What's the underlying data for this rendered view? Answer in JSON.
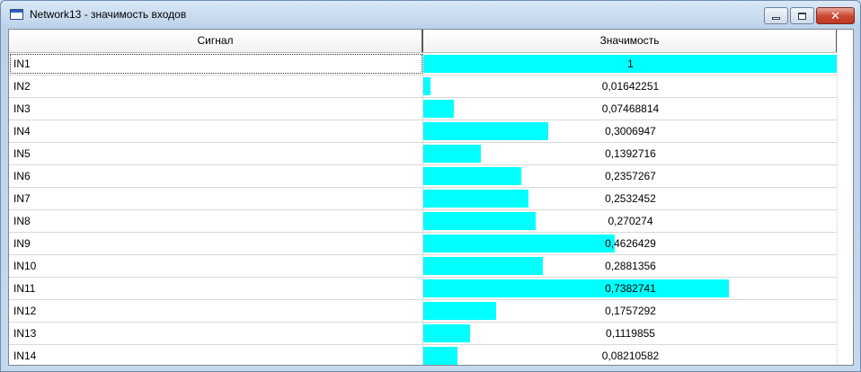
{
  "window": {
    "title": "Network13 - значимость входов"
  },
  "controls": {
    "close_glyph": "✕"
  },
  "table": {
    "columns": [
      "Сигнал",
      "Значимость"
    ],
    "rows": [
      {
        "name": "IN1",
        "value": "1",
        "importance": 1
      },
      {
        "name": "IN2",
        "value": "0,01642251",
        "importance": 0.01642251
      },
      {
        "name": "IN3",
        "value": "0,07468814",
        "importance": 0.07468814
      },
      {
        "name": "IN4",
        "value": "0,3006947",
        "importance": 0.3006947
      },
      {
        "name": "IN5",
        "value": "0,1392716",
        "importance": 0.1392716
      },
      {
        "name": "IN6",
        "value": "0,2357267",
        "importance": 0.2357267
      },
      {
        "name": "IN7",
        "value": "0,2532452",
        "importance": 0.2532452
      },
      {
        "name": "IN8",
        "value": "0,270274",
        "importance": 0.270274
      },
      {
        "name": "IN9",
        "value": "0,4626429",
        "importance": 0.4626429
      },
      {
        "name": "IN10",
        "value": "0,2881356",
        "importance": 0.2881356
      },
      {
        "name": "IN11",
        "value": "0,7382741",
        "importance": 0.7382741
      },
      {
        "name": "IN12",
        "value": "0,1757292",
        "importance": 0.1757292
      },
      {
        "name": "IN13",
        "value": "0,1119855",
        "importance": 0.1119855
      },
      {
        "name": "IN14",
        "value": "0,08210582",
        "importance": 0.08210582
      }
    ]
  },
  "colors": {
    "bar": "#00ffff"
  }
}
